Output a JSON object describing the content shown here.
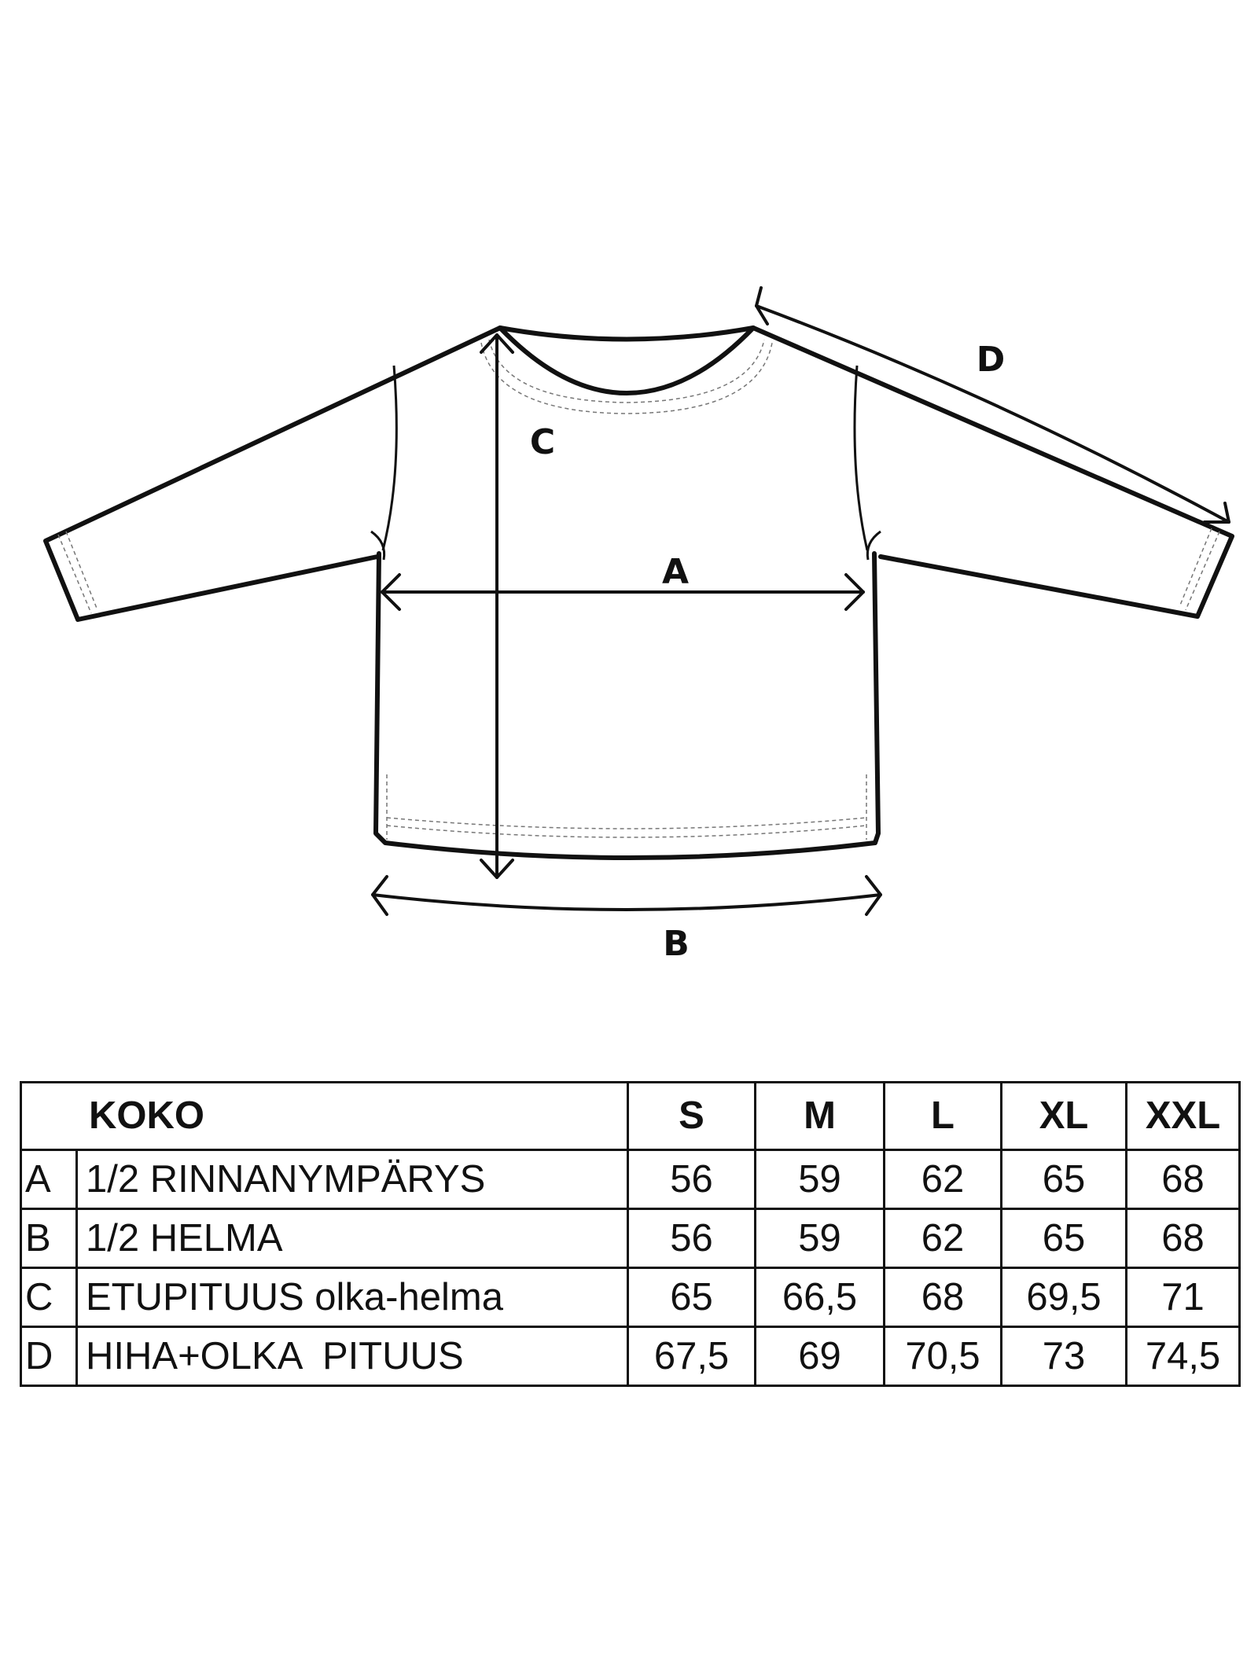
{
  "diagram": {
    "labels": {
      "A": "A",
      "B": "B",
      "C": "C",
      "D": "D"
    }
  },
  "table": {
    "header": {
      "label": "KOKO",
      "sizes": [
        "S",
        "M",
        "L",
        "XL",
        "XXL"
      ]
    },
    "rows": [
      {
        "letter": "A",
        "name": "1/2 RINNANYMPÄRYS",
        "values": [
          "56",
          "59",
          "62",
          "65",
          "68"
        ]
      },
      {
        "letter": "B",
        "name": "1/2 HELMA",
        "values": [
          "56",
          "59",
          "62",
          "65",
          "68"
        ]
      },
      {
        "letter": "C",
        "name": "ETUPITUUS olka-helma",
        "values": [
          "65",
          "66,5",
          "68",
          "69,5",
          "71"
        ]
      },
      {
        "letter": "D",
        "name": "HIHA+OLKA  PITUUS",
        "values": [
          "67,5",
          "69",
          "70,5",
          "73",
          "74,5"
        ]
      }
    ]
  }
}
